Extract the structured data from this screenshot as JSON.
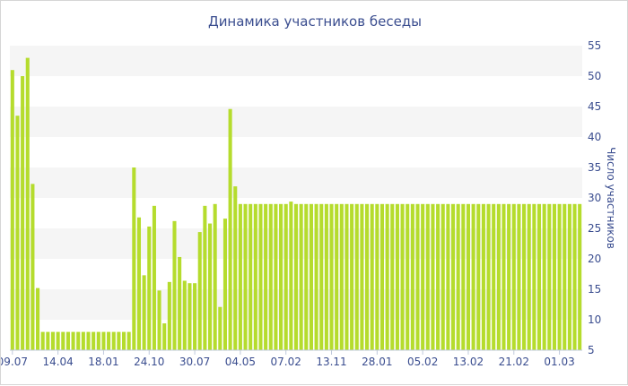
{
  "chart_data": {
    "type": "bar",
    "title": "Динамика участников беседы",
    "xlabel": "",
    "ylabel": "Число участников",
    "ylim": [
      5,
      55
    ],
    "y_ticks": [
      5,
      10,
      15,
      20,
      25,
      30,
      35,
      40,
      45,
      50,
      55
    ],
    "y_axis_side": "right",
    "grid": "alternating horizontal bands",
    "bar_color": "#b5dc2d",
    "x_tick_labels": [
      "09.07",
      "14.04",
      "18.01",
      "24.10",
      "30.07",
      "04.05",
      "07.02",
      "13.11",
      "28.01",
      "05.02",
      "13.02",
      "21.02",
      "01.03"
    ],
    "x_tick_bar_index": [
      0,
      9,
      18,
      27,
      36,
      45,
      54,
      63,
      72,
      81,
      90,
      99,
      108
    ],
    "values": [
      51,
      43.5,
      50,
      53,
      32.3,
      15.2,
      8,
      8,
      8,
      8,
      8,
      8,
      8,
      8,
      8,
      8,
      8,
      8,
      8,
      8,
      8,
      8,
      8,
      8,
      35,
      26.8,
      17.3,
      25.3,
      28.7,
      14.8,
      9.4,
      16.2,
      26.2,
      20.3,
      16.4,
      16,
      16,
      24.4,
      28.7,
      25.8,
      29,
      12.1,
      26.6,
      44.6,
      31.9,
      29,
      29,
      29,
      29,
      29,
      29,
      29,
      29,
      29,
      29,
      29.4,
      29,
      29,
      29,
      29,
      29,
      29,
      29,
      29,
      29,
      29,
      29,
      29,
      29,
      29,
      29,
      29,
      29,
      29,
      29,
      29,
      29,
      29,
      29,
      29,
      29,
      29,
      29,
      29,
      29,
      29,
      29,
      29,
      29,
      29,
      29,
      29,
      29,
      29,
      29,
      29,
      29,
      29,
      29,
      29,
      29,
      29,
      29,
      29,
      29,
      29,
      29,
      29,
      29,
      29,
      29,
      29,
      29
    ]
  }
}
